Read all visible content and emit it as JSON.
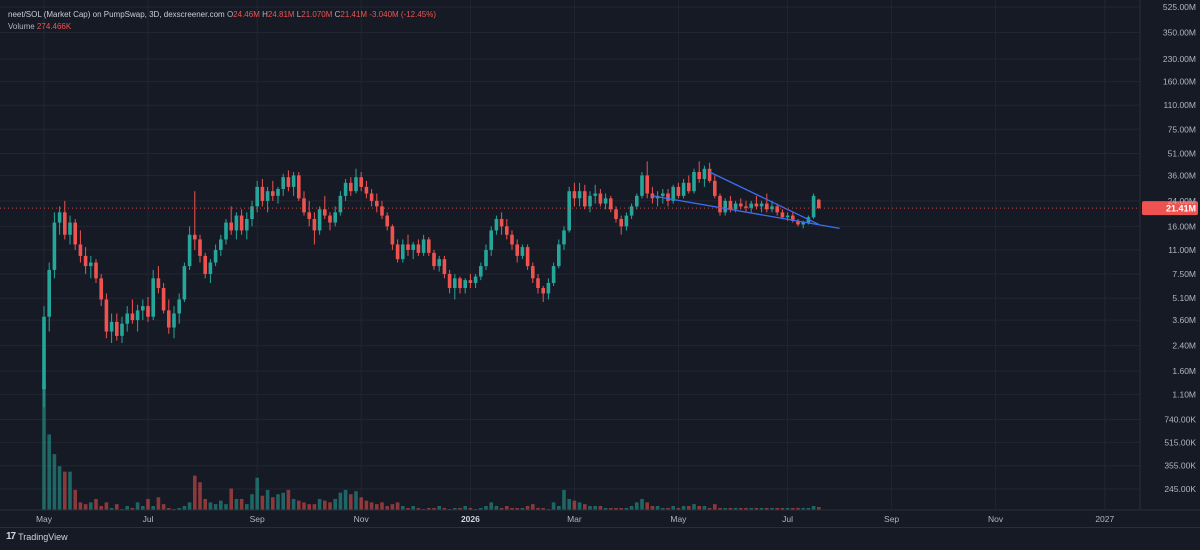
{
  "legend": {
    "title": "neet/SOL (Market Cap) on PumpSwap, 3D, dexscreener.com",
    "o_label": "O",
    "o": "24.46M",
    "h_label": "H",
    "h": "24.81M",
    "l_label": "L",
    "l": "21.070M",
    "c_label": "C",
    "c": "21.41M",
    "change": "-3.040M (-12.45%)",
    "volume_label": "Volume",
    "volume": "274.466K"
  },
  "branding": {
    "logo": "17",
    "name": "TradingView"
  },
  "colors": {
    "up": "#26a69a",
    "down": "#ef5350",
    "trendline": "#3d6df2",
    "price_tag": "#ef5350",
    "background": "#161a25"
  },
  "chart_data": {
    "type": "candlestick",
    "yscale": "log",
    "ylim_label": [
      "245.00K",
      "525.00M"
    ],
    "current_price": 21.41,
    "current_price_label": "21.41M",
    "y_ticks": [
      {
        "value": 525,
        "label": "525.00M"
      },
      {
        "value": 350,
        "label": "350.00M"
      },
      {
        "value": 230,
        "label": "230.00M"
      },
      {
        "value": 160,
        "label": "160.00M"
      },
      {
        "value": 110,
        "label": "110.00M"
      },
      {
        "value": 75,
        "label": "75.00M"
      },
      {
        "value": 51,
        "label": "51.00M"
      },
      {
        "value": 36,
        "label": "36.00M"
      },
      {
        "value": 24,
        "label": "24.00M"
      },
      {
        "value": 16,
        "label": "16.00M"
      },
      {
        "value": 11,
        "label": "11.00M"
      },
      {
        "value": 7.5,
        "label": "7.50M"
      },
      {
        "value": 5.1,
        "label": "5.10M"
      },
      {
        "value": 3.6,
        "label": "3.60M"
      },
      {
        "value": 2.4,
        "label": "2.40M"
      },
      {
        "value": 1.6,
        "label": "1.60M"
      },
      {
        "value": 1.1,
        "label": "1.10M"
      },
      {
        "value": 0.74,
        "label": "740.00K"
      },
      {
        "value": 0.515,
        "label": "515.00K"
      },
      {
        "value": 0.355,
        "label": "355.00K"
      },
      {
        "value": 0.245,
        "label": "245.00K"
      }
    ],
    "x_ticks": [
      {
        "i": 0,
        "label": "May"
      },
      {
        "i": 20,
        "label": "Jul"
      },
      {
        "i": 41,
        "label": "Sep"
      },
      {
        "i": 61,
        "label": "Nov"
      },
      {
        "i": 82,
        "label": "2026",
        "bold": true
      },
      {
        "i": 102,
        "label": "Mar"
      },
      {
        "i": 122,
        "label": "May"
      },
      {
        "i": 143,
        "label": "Jul"
      },
      {
        "i": 163,
        "label": "Sep"
      },
      {
        "i": 183,
        "label": "Nov"
      },
      {
        "i": 204,
        "label": "2027"
      }
    ],
    "candles": [
      [
        1.2,
        4.5,
        0.9,
        3.8
      ],
      [
        3.8,
        9.0,
        3.0,
        8.0
      ],
      [
        8.0,
        20.0,
        7.0,
        17.0
      ],
      [
        17.0,
        22.0,
        14.0,
        20.0
      ],
      [
        20.0,
        24.0,
        13.0,
        14.0
      ],
      [
        14.0,
        19.0,
        12.0,
        17.0
      ],
      [
        17.0,
        18.0,
        11.0,
        12.0
      ],
      [
        12.0,
        15.0,
        9.0,
        10.0
      ],
      [
        10.0,
        11.5,
        7.5,
        8.5
      ],
      [
        8.5,
        10.0,
        7.0,
        9.0
      ],
      [
        9.0,
        9.5,
        6.5,
        7.0
      ],
      [
        7.0,
        7.5,
        4.5,
        5.0
      ],
      [
        5.0,
        5.5,
        2.7,
        3.0
      ],
      [
        3.0,
        4.0,
        2.5,
        3.5
      ],
      [
        3.5,
        4.0,
        2.6,
        2.8
      ],
      [
        2.8,
        3.8,
        2.5,
        3.4
      ],
      [
        3.4,
        4.5,
        3.0,
        4.0
      ],
      [
        4.0,
        5.0,
        3.4,
        3.6
      ],
      [
        3.6,
        4.6,
        3.0,
        4.2
      ],
      [
        4.2,
        5.0,
        3.6,
        4.5
      ],
      [
        4.5,
        5.2,
        3.5,
        3.8
      ],
      [
        3.8,
        8.0,
        3.6,
        7.0
      ],
      [
        7.0,
        8.5,
        5.5,
        6.0
      ],
      [
        6.0,
        6.5,
        4.0,
        4.2
      ],
      [
        4.2,
        5.0,
        2.9,
        3.2
      ],
      [
        3.2,
        4.5,
        2.7,
        4.0
      ],
      [
        4.0,
        5.5,
        3.4,
        5.0
      ],
      [
        5.0,
        9.0,
        4.8,
        8.5
      ],
      [
        8.5,
        16.0,
        8.0,
        14.0
      ],
      [
        14.0,
        28.0,
        11.0,
        13.0
      ],
      [
        13.0,
        14.0,
        9.0,
        10.0
      ],
      [
        10.0,
        10.5,
        7.0,
        7.5
      ],
      [
        7.5,
        9.5,
        6.5,
        9.0
      ],
      [
        9.0,
        12.0,
        8.5,
        11.0
      ],
      [
        11.0,
        14.0,
        10.0,
        13.0
      ],
      [
        13.0,
        18.0,
        12.0,
        17.0
      ],
      [
        17.0,
        22.0,
        14.0,
        15.0
      ],
      [
        15.0,
        20.0,
        13.0,
        19.0
      ],
      [
        19.0,
        21.0,
        14.0,
        15.0
      ],
      [
        15.0,
        20.0,
        13.0,
        18.0
      ],
      [
        18.0,
        24.0,
        16.0,
        22.0
      ],
      [
        22.0,
        33.0,
        20.0,
        30.0
      ],
      [
        30.0,
        34.0,
        22.0,
        24.0
      ],
      [
        24.0,
        30.0,
        20.0,
        28.0
      ],
      [
        28.0,
        33.0,
        24.0,
        26.0
      ],
      [
        26.0,
        30.0,
        23.0,
        29.0
      ],
      [
        29.0,
        37.0,
        26.0,
        35.0
      ],
      [
        35.0,
        39.0,
        28.0,
        30.0
      ],
      [
        30.0,
        38.0,
        26.0,
        36.0
      ],
      [
        36.0,
        38.0,
        24.0,
        25.0
      ],
      [
        25.0,
        28.0,
        19.0,
        20.0
      ],
      [
        20.0,
        24.0,
        16.0,
        18.0
      ],
      [
        18.0,
        20.0,
        12.0,
        15.0
      ],
      [
        15.0,
        22.0,
        14.0,
        21.0
      ],
      [
        21.0,
        26.0,
        18.0,
        19.0
      ],
      [
        19.0,
        20.0,
        15.0,
        17.0
      ],
      [
        17.0,
        22.0,
        16.0,
        20.0
      ],
      [
        20.0,
        28.0,
        19.0,
        26.0
      ],
      [
        26.0,
        34.0,
        24.0,
        32.0
      ],
      [
        32.0,
        35.0,
        26.0,
        28.0
      ],
      [
        28.0,
        40.0,
        27.0,
        35.0
      ],
      [
        35.0,
        38.0,
        28.0,
        30.0
      ],
      [
        30.0,
        33.0,
        25.0,
        27.0
      ],
      [
        27.0,
        29.0,
        22.0,
        24.0
      ],
      [
        24.0,
        27.0,
        20.0,
        22.0
      ],
      [
        22.0,
        24.0,
        18.0,
        19.0
      ],
      [
        19.0,
        20.0,
        15.0,
        16.0
      ],
      [
        16.0,
        16.5,
        11.0,
        12.0
      ],
      [
        12.0,
        13.0,
        9.0,
        9.5
      ],
      [
        9.5,
        13.0,
        9.0,
        12.0
      ],
      [
        12.0,
        14.0,
        10.0,
        11.0
      ],
      [
        11.0,
        12.5,
        9.5,
        12.0
      ],
      [
        12.0,
        13.0,
        10.0,
        10.5
      ],
      [
        10.5,
        14.0,
        10.0,
        13.0
      ],
      [
        13.0,
        13.5,
        10.0,
        10.5
      ],
      [
        10.5,
        11.0,
        8.0,
        8.5
      ],
      [
        8.5,
        10.0,
        7.8,
        9.5
      ],
      [
        9.5,
        10.0,
        7.0,
        7.5
      ],
      [
        7.5,
        8.0,
        5.5,
        6.0
      ],
      [
        6.0,
        7.5,
        5.0,
        7.0
      ],
      [
        7.0,
        7.2,
        5.5,
        6.0
      ],
      [
        6.0,
        7.0,
        5.5,
        6.8
      ],
      [
        6.8,
        7.5,
        6.0,
        6.5
      ],
      [
        6.5,
        7.5,
        6.0,
        7.2
      ],
      [
        7.2,
        9.0,
        6.8,
        8.5
      ],
      [
        8.5,
        12.0,
        8.0,
        11.0
      ],
      [
        11.0,
        16.0,
        10.0,
        15.0
      ],
      [
        15.0,
        19.0,
        14.0,
        18.0
      ],
      [
        18.0,
        20.0,
        14.0,
        16.0
      ],
      [
        16.0,
        18.0,
        13.0,
        14.0
      ],
      [
        14.0,
        15.0,
        11.0,
        12.0
      ],
      [
        12.0,
        13.0,
        9.0,
        10.0
      ],
      [
        10.0,
        12.0,
        9.5,
        11.5
      ],
      [
        11.5,
        12.0,
        8.0,
        8.5
      ],
      [
        8.5,
        9.0,
        6.5,
        7.0
      ],
      [
        7.0,
        7.5,
        5.5,
        6.0
      ],
      [
        6.0,
        6.2,
        4.8,
        5.5
      ],
      [
        5.5,
        7.0,
        5.0,
        6.5
      ],
      [
        6.5,
        9.0,
        6.2,
        8.5
      ],
      [
        8.5,
        13.0,
        8.2,
        12.0
      ],
      [
        12.0,
        16.0,
        11.0,
        15.0
      ],
      [
        15.0,
        30.0,
        14.5,
        28.0
      ],
      [
        28.0,
        32.0,
        22.0,
        25.0
      ],
      [
        25.0,
        32.0,
        22.0,
        28.0
      ],
      [
        28.0,
        31.0,
        21.0,
        22.0
      ],
      [
        22.0,
        28.0,
        20.0,
        26.0
      ],
      [
        26.0,
        31.0,
        23.0,
        27.0
      ],
      [
        27.0,
        29.0,
        22.0,
        23.0
      ],
      [
        23.0,
        27.0,
        21.0,
        25.0
      ],
      [
        25.0,
        26.0,
        20.0,
        21.0
      ],
      [
        21.0,
        22.0,
        17.0,
        18.0
      ],
      [
        18.0,
        19.0,
        14.0,
        16.0
      ],
      [
        16.0,
        20.0,
        15.0,
        19.0
      ],
      [
        19.0,
        23.0,
        18.0,
        22.0
      ],
      [
        22.0,
        27.0,
        21.0,
        26.0
      ],
      [
        26.0,
        38.0,
        25.0,
        36.0
      ],
      [
        36.0,
        45.0,
        25.0,
        27.0
      ],
      [
        27.0,
        30.0,
        23.0,
        25.0
      ],
      [
        25.0,
        28.0,
        22.0,
        26.0
      ],
      [
        26.0,
        29.0,
        23.0,
        27.0
      ],
      [
        27.0,
        29.0,
        22.0,
        24.0
      ],
      [
        24.0,
        31.0,
        23.0,
        30.0
      ],
      [
        30.0,
        32.0,
        25.0,
        26.0
      ],
      [
        26.0,
        34.0,
        25.0,
        32.0
      ],
      [
        32.0,
        36.0,
        27.0,
        28.0
      ],
      [
        28.0,
        40.0,
        27.0,
        38.0
      ],
      [
        38.0,
        45.0,
        32.0,
        34.0
      ],
      [
        34.0,
        42.0,
        30.0,
        40.0
      ],
      [
        40.0,
        44.0,
        32.0,
        33.0
      ],
      [
        33.0,
        36.0,
        25.0,
        26.0
      ],
      [
        26.0,
        27.0,
        19.0,
        20.0
      ],
      [
        20.0,
        25.0,
        19.0,
        24.0
      ],
      [
        24.0,
        26.0,
        20.0,
        21.0
      ],
      [
        21.0,
        24.0,
        20.0,
        23.0
      ],
      [
        23.0,
        25.0,
        21.0,
        22.0
      ],
      [
        22.0,
        24.0,
        20.0,
        21.5
      ],
      [
        21.5,
        24.0,
        20.0,
        23.0
      ],
      [
        23.0,
        26.0,
        21.0,
        22.0
      ],
      [
        22.0,
        24.0,
        20.0,
        23.0
      ],
      [
        23.0,
        27.0,
        20.0,
        21.0
      ],
      [
        21.0,
        24.0,
        20.0,
        22.0
      ],
      [
        22.0,
        23.0,
        19.0,
        20.0
      ],
      [
        20.0,
        21.0,
        18.0,
        18.5
      ],
      [
        18.5,
        20.0,
        17.5,
        19.0
      ],
      [
        19.0,
        20.0,
        17.0,
        17.5
      ],
      [
        17.5,
        18.0,
        16.0,
        16.5
      ],
      [
        16.5,
        17.5,
        15.5,
        17.0
      ],
      [
        17.0,
        19.0,
        16.5,
        18.5
      ],
      [
        18.5,
        27.0,
        18.0,
        26.0
      ],
      [
        24.46,
        24.81,
        21.07,
        21.41
      ]
    ],
    "volumes": [
      3.2,
      1.1,
      0.74,
      0.58,
      0.52,
      0.52,
      0.36,
      0.28,
      0.27,
      0.28,
      0.3,
      0.26,
      0.28,
      0.25,
      0.27,
      0.24,
      0.26,
      0.25,
      0.28,
      0.26,
      0.3,
      0.26,
      0.31,
      0.27,
      0.25,
      0.24,
      0.25,
      0.26,
      0.28,
      0.48,
      0.42,
      0.3,
      0.28,
      0.27,
      0.29,
      0.27,
      0.37,
      0.3,
      0.3,
      0.27,
      0.33,
      0.46,
      0.32,
      0.36,
      0.31,
      0.33,
      0.34,
      0.36,
      0.3,
      0.29,
      0.28,
      0.27,
      0.27,
      0.3,
      0.29,
      0.28,
      0.3,
      0.34,
      0.36,
      0.33,
      0.35,
      0.31,
      0.29,
      0.28,
      0.27,
      0.28,
      0.26,
      0.27,
      0.28,
      0.26,
      0.25,
      0.26,
      0.25,
      0.24,
      0.25,
      0.25,
      0.26,
      0.25,
      0.24,
      0.25,
      0.25,
      0.26,
      0.25,
      0.24,
      0.25,
      0.26,
      0.28,
      0.26,
      0.25,
      0.26,
      0.25,
      0.25,
      0.25,
      0.26,
      0.27,
      0.25,
      0.25,
      0.24,
      0.28,
      0.26,
      0.36,
      0.3,
      0.29,
      0.28,
      0.27,
      0.26,
      0.26,
      0.26,
      0.25,
      0.25,
      0.25,
      0.25,
      0.25,
      0.26,
      0.28,
      0.3,
      0.28,
      0.26,
      0.26,
      0.25,
      0.25,
      0.26,
      0.25,
      0.26,
      0.26,
      0.27,
      0.26,
      0.26,
      0.25,
      0.27,
      0.25,
      0.25,
      0.25,
      0.25,
      0.25,
      0.25,
      0.25,
      0.25,
      0.25,
      0.25,
      0.25,
      0.25,
      0.25,
      0.25,
      0.25,
      0.25,
      0.25,
      0.25,
      0.26,
      0.255
    ],
    "trendlines": [
      {
        "from": [
          128,
          38
        ],
        "to": [
          149,
          16.5
        ],
        "color": "#3d6df2"
      },
      {
        "from": [
          117,
          26
        ],
        "to": [
          153,
          15.5
        ],
        "color": "#3d6df2"
      }
    ]
  }
}
